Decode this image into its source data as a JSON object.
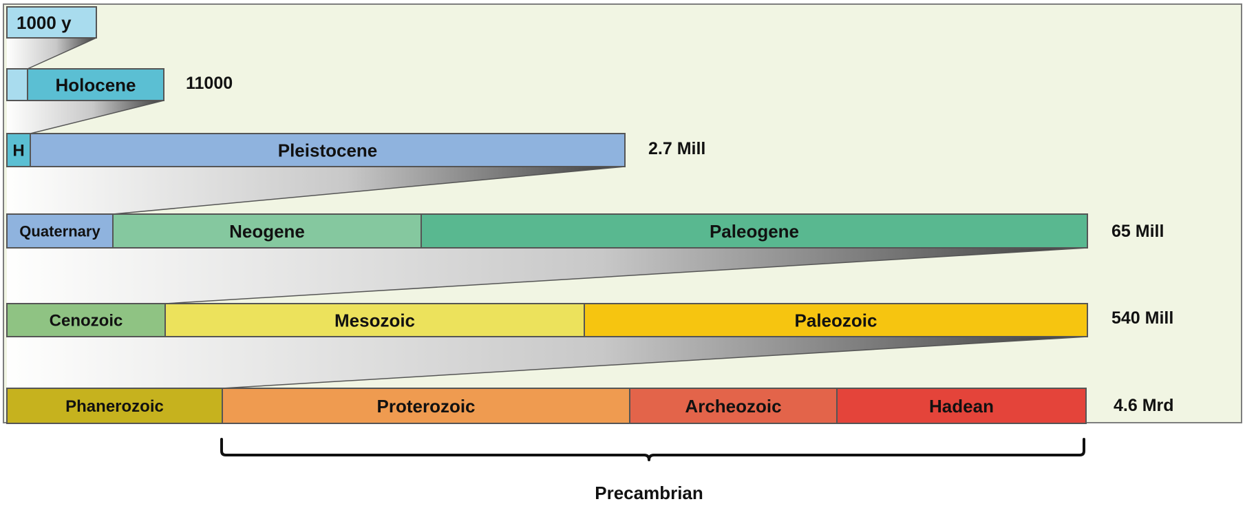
{
  "rows": [
    {
      "id": "row-1000y",
      "end_label": "",
      "segments": [
        {
          "label": "1000 y",
          "color": "#a9dcee",
          "align": "left"
        }
      ]
    },
    {
      "id": "row-holocene",
      "end_label": "11000",
      "segments": [
        {
          "label": "",
          "color": "#a9dcee"
        },
        {
          "label": "Holocene",
          "color": "#5bbfd3"
        }
      ]
    },
    {
      "id": "row-pleistocene",
      "end_label": "2.7 Mill",
      "segments": [
        {
          "label": "H",
          "color": "#5bbfd3"
        },
        {
          "label": "Pleistocene",
          "color": "#8fb3de"
        }
      ]
    },
    {
      "id": "row-tertiary",
      "end_label": "65 Mill",
      "segments": [
        {
          "label": "Quaternary",
          "color": "#8fb3de"
        },
        {
          "label": "Neogene",
          "color": "#85c89f"
        },
        {
          "label": "Paleogene",
          "color": "#59b890"
        }
      ]
    },
    {
      "id": "row-eras",
      "end_label": "540 Mill",
      "segments": [
        {
          "label": "Cenozoic",
          "color": "#8fc383"
        },
        {
          "label": "Mesozoic",
          "color": "#ece25c"
        },
        {
          "label": "Paleozoic",
          "color": "#f6c510"
        }
      ]
    },
    {
      "id": "row-eons",
      "end_label": "4.6 Mrd",
      "segments": [
        {
          "label": "Phanerozoic",
          "color": "#c6b21e"
        },
        {
          "label": "Proterozoic",
          "color": "#ef9b50"
        },
        {
          "label": "Archeozoic",
          "color": "#e3644a"
        },
        {
          "label": "Hadean",
          "color": "#e4443a"
        }
      ]
    }
  ],
  "bracket": {
    "label": "Precambrian"
  },
  "colors": {
    "panel_background": "#f1f5e3",
    "panel_border": "#7d7d7d",
    "bar_outline": "#555555",
    "text": "#111111"
  }
}
